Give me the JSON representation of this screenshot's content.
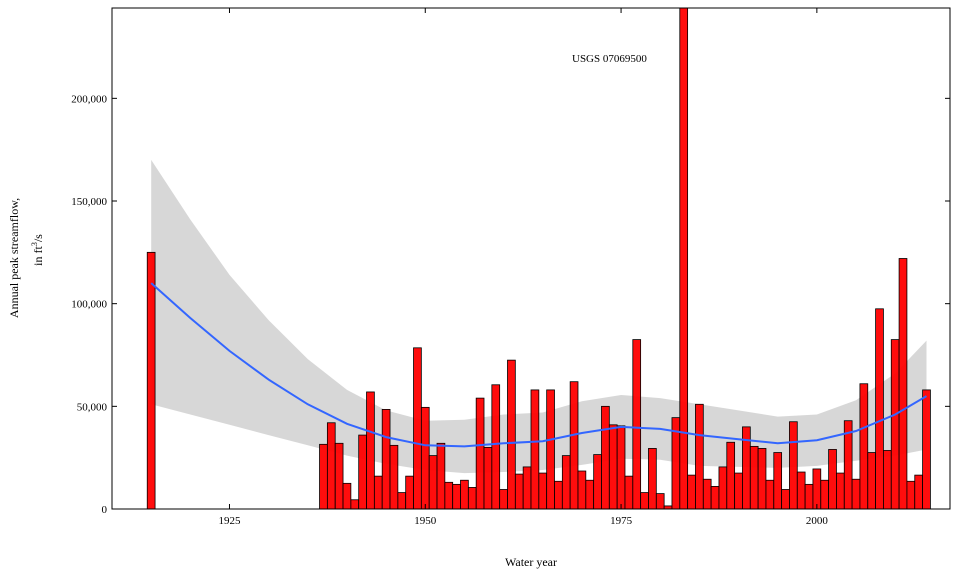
{
  "chart_data": {
    "type": "bar",
    "title": "",
    "annotation": "USGS 07069500",
    "xlabel": "Water year",
    "ylabel_line1": "Annual peak streamflow,",
    "ylabel_line2_prefix": "in ft",
    "ylabel_line2_sup": "3",
    "ylabel_line2_suffix": "/s",
    "xlim": [
      1910,
      2017
    ],
    "ylim": [
      0,
      244000
    ],
    "x_ticks": [
      1925,
      1950,
      1975,
      2000
    ],
    "x_tick_labels": [
      "1925",
      "1950",
      "1975",
      "2000"
    ],
    "y_ticks": [
      0,
      50000,
      100000,
      150000,
      200000
    ],
    "y_tick_labels": [
      "0",
      "50,000",
      "100,000",
      "150,000",
      "200,000"
    ],
    "grid": false,
    "bar_color": "#ff0000",
    "bar_stroke": "#000000",
    "smooth_color": "#3366ff",
    "band_color": "#bdbdbd",
    "series": [
      {
        "type": "bar",
        "x": [
          1915,
          1937,
          1938,
          1939,
          1940,
          1941,
          1942,
          1943,
          1944,
          1945,
          1946,
          1947,
          1948,
          1949,
          1950,
          1951,
          1952,
          1953,
          1954,
          1955,
          1956,
          1957,
          1958,
          1959,
          1960,
          1961,
          1962,
          1963,
          1964,
          1965,
          1966,
          1967,
          1968,
          1969,
          1970,
          1971,
          1972,
          1973,
          1974,
          1975,
          1976,
          1977,
          1978,
          1979,
          1980,
          1981,
          1982,
          1983,
          1984,
          1985,
          1986,
          1987,
          1988,
          1989,
          1990,
          1991,
          1992,
          1993,
          1994,
          1995,
          1996,
          1997,
          1998,
          1999,
          2000,
          2001,
          2002,
          2003,
          2004,
          2005,
          2006,
          2007,
          2008,
          2009,
          2010,
          2011,
          2012,
          2013,
          2014
        ],
        "values": [
          125000,
          31500,
          42000,
          32000,
          12500,
          4500,
          36000,
          57000,
          16000,
          48500,
          31000,
          8000,
          16000,
          78500,
          49500,
          26000,
          32000,
          13000,
          12000,
          14000,
          10500,
          54000,
          30000,
          60500,
          9500,
          72500,
          17000,
          20500,
          58000,
          17500,
          58000,
          13500,
          26000,
          62000,
          18500,
          14000,
          26500,
          50000,
          41000,
          40500,
          16000,
          82500,
          8000,
          29500,
          7500,
          1500,
          44500,
          244000,
          16500,
          51000,
          14500,
          11000,
          20500,
          32500,
          17500,
          40000,
          30500,
          29500,
          14000,
          27500,
          9500,
          42500,
          18000,
          12000,
          19500,
          14000,
          29000,
          17500,
          43000,
          14500,
          61000,
          27500,
          97500,
          28500,
          82500,
          122000,
          13500,
          16500,
          58000
        ]
      },
      {
        "type": "smooth",
        "name": "",
        "x": [
          1915,
          1920,
          1925,
          1930,
          1935,
          1940,
          1945,
          1950,
          1955,
          1960,
          1965,
          1970,
          1975,
          1980,
          1985,
          1990,
          1995,
          2000,
          2005,
          2010,
          2014
        ],
        "fit": [
          110000,
          93000,
          77000,
          63000,
          51000,
          41500,
          35000,
          31000,
          30500,
          32000,
          33000,
          37000,
          40000,
          39000,
          36000,
          34000,
          32000,
          33500,
          38000,
          46000,
          55000
        ],
        "lower": [
          51000,
          46000,
          41000,
          36000,
          31000,
          26000,
          22000,
          19000,
          17500,
          18000,
          19000,
          21500,
          24500,
          24000,
          21000,
          20500,
          20000,
          21000,
          23500,
          26000,
          29000
        ],
        "upper": [
          170000,
          141000,
          114000,
          92000,
          73000,
          58000,
          48000,
          43000,
          43500,
          46000,
          47000,
          52500,
          55500,
          54000,
          51000,
          48000,
          45000,
          46000,
          53000,
          66000,
          82000
        ]
      }
    ]
  }
}
